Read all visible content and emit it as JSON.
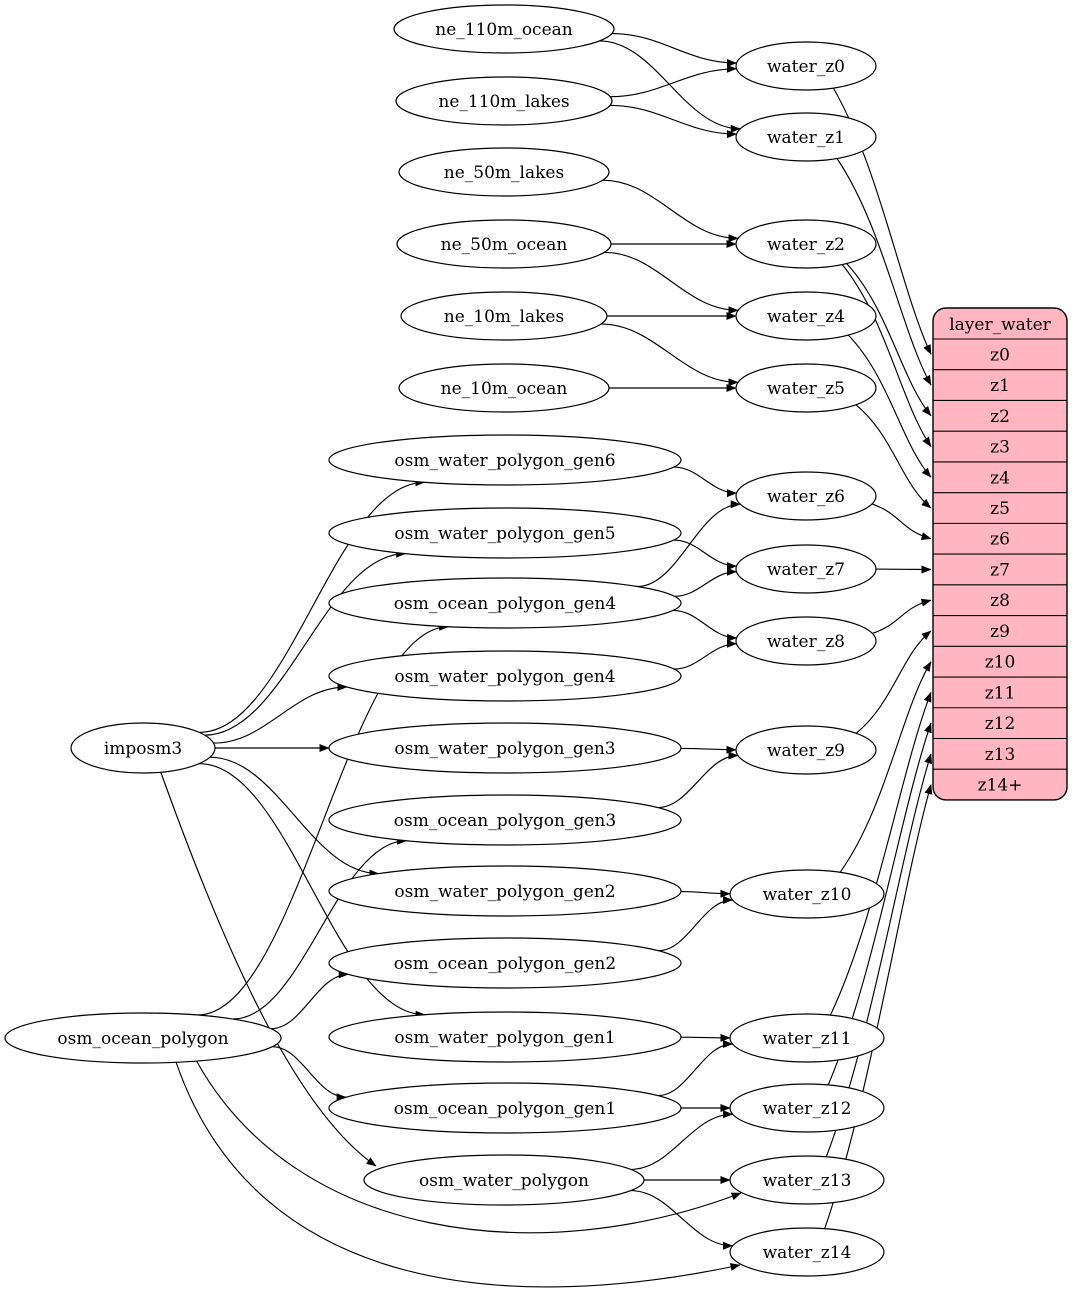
{
  "diagram": {
    "kind": "etl-dependency-graph",
    "colors": {
      "node_fill": "#ffffff",
      "node_stroke": "#000000",
      "edge_color": "#000000",
      "table_fill": "#ffb6c1",
      "table_stroke": "#000000",
      "text_color": "#000000"
    },
    "nodes": [
      {
        "id": "ne_110m_ocean",
        "label": "ne_110m_ocean"
      },
      {
        "id": "ne_110m_lakes",
        "label": "ne_110m_lakes"
      },
      {
        "id": "ne_50m_lakes",
        "label": "ne_50m_lakes"
      },
      {
        "id": "ne_50m_ocean",
        "label": "ne_50m_ocean"
      },
      {
        "id": "ne_10m_lakes",
        "label": "ne_10m_lakes"
      },
      {
        "id": "ne_10m_ocean",
        "label": "ne_10m_ocean"
      },
      {
        "id": "imposm3",
        "label": "imposm3"
      },
      {
        "id": "osm_ocean_polygon",
        "label": "osm_ocean_polygon"
      },
      {
        "id": "osm_water_polygon_gen6",
        "label": "osm_water_polygon_gen6"
      },
      {
        "id": "osm_water_polygon_gen5",
        "label": "osm_water_polygon_gen5"
      },
      {
        "id": "osm_ocean_polygon_gen4",
        "label": "osm_ocean_polygon_gen4"
      },
      {
        "id": "osm_water_polygon_gen4",
        "label": "osm_water_polygon_gen4"
      },
      {
        "id": "osm_water_polygon_gen3",
        "label": "osm_water_polygon_gen3"
      },
      {
        "id": "osm_ocean_polygon_gen3",
        "label": "osm_ocean_polygon_gen3"
      },
      {
        "id": "osm_water_polygon_gen2",
        "label": "osm_water_polygon_gen2"
      },
      {
        "id": "osm_ocean_polygon_gen2",
        "label": "osm_ocean_polygon_gen2"
      },
      {
        "id": "osm_water_polygon_gen1",
        "label": "osm_water_polygon_gen1"
      },
      {
        "id": "osm_ocean_polygon_gen1",
        "label": "osm_ocean_polygon_gen1"
      },
      {
        "id": "osm_water_polygon",
        "label": "osm_water_polygon"
      },
      {
        "id": "water_z0",
        "label": "water_z0"
      },
      {
        "id": "water_z1",
        "label": "water_z1"
      },
      {
        "id": "water_z2",
        "label": "water_z2"
      },
      {
        "id": "water_z4",
        "label": "water_z4"
      },
      {
        "id": "water_z5",
        "label": "water_z5"
      },
      {
        "id": "water_z6",
        "label": "water_z6"
      },
      {
        "id": "water_z7",
        "label": "water_z7"
      },
      {
        "id": "water_z8",
        "label": "water_z8"
      },
      {
        "id": "water_z9",
        "label": "water_z9"
      },
      {
        "id": "water_z10",
        "label": "water_z10"
      },
      {
        "id": "water_z11",
        "label": "water_z11"
      },
      {
        "id": "water_z12",
        "label": "water_z12"
      },
      {
        "id": "water_z13",
        "label": "water_z13"
      },
      {
        "id": "water_z14",
        "label": "water_z14"
      }
    ],
    "table": {
      "id": "layer_water",
      "title": "layer_water",
      "rows": [
        "z0",
        "z1",
        "z2",
        "z3",
        "z4",
        "z5",
        "z6",
        "z7",
        "z8",
        "z9",
        "z10",
        "z11",
        "z12",
        "z13",
        "z14+"
      ]
    },
    "edges": [
      {
        "from": "ne_110m_ocean",
        "to": "water_z0"
      },
      {
        "from": "ne_110m_ocean",
        "to": "water_z1"
      },
      {
        "from": "ne_110m_lakes",
        "to": "water_z0"
      },
      {
        "from": "ne_110m_lakes",
        "to": "water_z1"
      },
      {
        "from": "ne_50m_lakes",
        "to": "water_z2"
      },
      {
        "from": "ne_50m_ocean",
        "to": "water_z2"
      },
      {
        "from": "ne_50m_ocean",
        "to": "water_z4"
      },
      {
        "from": "ne_10m_lakes",
        "to": "water_z4"
      },
      {
        "from": "ne_10m_lakes",
        "to": "water_z5"
      },
      {
        "from": "ne_10m_ocean",
        "to": "water_z5"
      },
      {
        "from": "imposm3",
        "to": "osm_water_polygon_gen6"
      },
      {
        "from": "imposm3",
        "to": "osm_water_polygon_gen5"
      },
      {
        "from": "imposm3",
        "to": "osm_water_polygon_gen4"
      },
      {
        "from": "imposm3",
        "to": "osm_water_polygon_gen3"
      },
      {
        "from": "imposm3",
        "to": "osm_water_polygon_gen2"
      },
      {
        "from": "imposm3",
        "to": "osm_water_polygon_gen1"
      },
      {
        "from": "imposm3",
        "to": "osm_water_polygon"
      },
      {
        "from": "osm_ocean_polygon",
        "to": "osm_ocean_polygon_gen4"
      },
      {
        "from": "osm_ocean_polygon",
        "to": "osm_ocean_polygon_gen3"
      },
      {
        "from": "osm_ocean_polygon",
        "to": "osm_ocean_polygon_gen2"
      },
      {
        "from": "osm_ocean_polygon",
        "to": "osm_ocean_polygon_gen1"
      },
      {
        "from": "osm_ocean_polygon",
        "to": "water_z13"
      },
      {
        "from": "osm_ocean_polygon",
        "to": "water_z14"
      },
      {
        "from": "osm_water_polygon_gen6",
        "to": "water_z6"
      },
      {
        "from": "osm_ocean_polygon_gen4",
        "to": "water_z6"
      },
      {
        "from": "osm_water_polygon_gen5",
        "to": "water_z7"
      },
      {
        "from": "osm_ocean_polygon_gen4",
        "to": "water_z7"
      },
      {
        "from": "osm_water_polygon_gen4",
        "to": "water_z8"
      },
      {
        "from": "osm_ocean_polygon_gen4",
        "to": "water_z8"
      },
      {
        "from": "osm_water_polygon_gen3",
        "to": "water_z9"
      },
      {
        "from": "osm_ocean_polygon_gen3",
        "to": "water_z9"
      },
      {
        "from": "osm_water_polygon_gen2",
        "to": "water_z10"
      },
      {
        "from": "osm_ocean_polygon_gen2",
        "to": "water_z10"
      },
      {
        "from": "osm_water_polygon_gen1",
        "to": "water_z11"
      },
      {
        "from": "osm_ocean_polygon_gen1",
        "to": "water_z11"
      },
      {
        "from": "osm_ocean_polygon_gen1",
        "to": "water_z12"
      },
      {
        "from": "osm_water_polygon",
        "to": "water_z12"
      },
      {
        "from": "osm_water_polygon",
        "to": "water_z13"
      },
      {
        "from": "osm_water_polygon",
        "to": "water_z14"
      },
      {
        "from": "water_z0",
        "to": "layer_water",
        "row": "z0"
      },
      {
        "from": "water_z1",
        "to": "layer_water",
        "row": "z1"
      },
      {
        "from": "water_z2",
        "to": "layer_water",
        "row": "z2"
      },
      {
        "from": "water_z2",
        "to": "layer_water",
        "row": "z3"
      },
      {
        "from": "water_z4",
        "to": "layer_water",
        "row": "z4"
      },
      {
        "from": "water_z5",
        "to": "layer_water",
        "row": "z5"
      },
      {
        "from": "water_z6",
        "to": "layer_water",
        "row": "z6"
      },
      {
        "from": "water_z7",
        "to": "layer_water",
        "row": "z7"
      },
      {
        "from": "water_z8",
        "to": "layer_water",
        "row": "z8"
      },
      {
        "from": "water_z9",
        "to": "layer_water",
        "row": "z9"
      },
      {
        "from": "water_z10",
        "to": "layer_water",
        "row": "z10"
      },
      {
        "from": "water_z11",
        "to": "layer_water",
        "row": "z11"
      },
      {
        "from": "water_z12",
        "to": "layer_water",
        "row": "z12"
      },
      {
        "from": "water_z13",
        "to": "layer_water",
        "row": "z13"
      },
      {
        "from": "water_z14",
        "to": "layer_water",
        "row": "z14+"
      }
    ]
  }
}
